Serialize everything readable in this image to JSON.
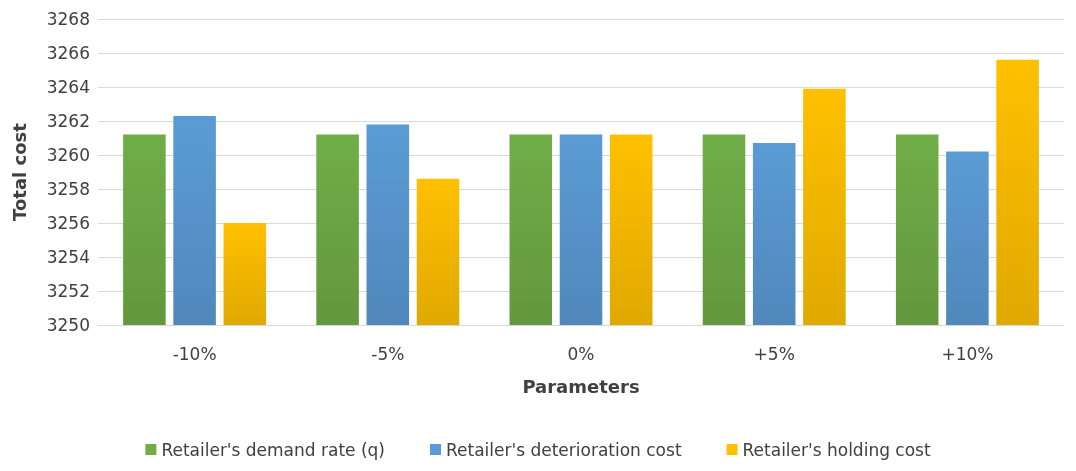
{
  "chart_data": {
    "type": "bar",
    "xlabel": "Parameters",
    "ylabel": "Total cost",
    "categories": [
      "-10%",
      "-5%",
      "0%",
      "+5%",
      "+10%"
    ],
    "series": [
      {
        "name": "Retailer's demand rate (q)",
        "color": "#70ad47",
        "values": [
          3261.2,
          3261.2,
          3261.2,
          3261.2,
          3261.2
        ]
      },
      {
        "name": "Retailer's deterioration cost",
        "color": "#5b9bd5",
        "values": [
          3262.3,
          3261.8,
          3261.2,
          3260.7,
          3260.2
        ]
      },
      {
        "name": "Retailer's holding cost",
        "color": "#ffc000",
        "values": [
          3256.0,
          3258.6,
          3261.2,
          3263.9,
          3265.6
        ]
      }
    ],
    "ylim": [
      3250,
      3268
    ],
    "yticks": [
      3250,
      3252,
      3254,
      3256,
      3258,
      3260,
      3262,
      3264,
      3266,
      3268
    ],
    "grid": "y",
    "legend": "bottom"
  }
}
